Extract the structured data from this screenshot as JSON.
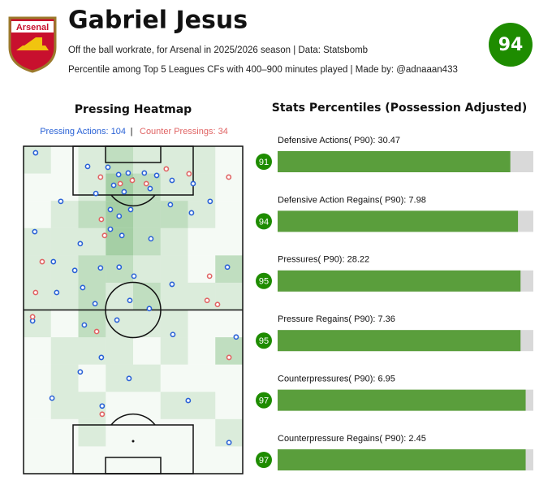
{
  "header": {
    "crest_text": "Arsenal",
    "title": "Gabriel Jesus",
    "subtitle1": "Off the ball workrate, for Arsenal in 2025/2026 season | Data: Statsbomb",
    "subtitle2": "Percentile among Top 5 Leagues CFs with 400–900 minutes played | Made by: @adnaaan433",
    "score": 94
  },
  "heatmap": {
    "title": "Pressing Heatmap",
    "legend": [
      {
        "label": "Pressing Actions: 104",
        "color": "#2a62d6"
      },
      {
        "label": "Counter Pressings: 34",
        "color": "#e06464"
      }
    ],
    "separator": "|",
    "pitch": {
      "width": 80,
      "length": 120
    },
    "cells": [
      [
        1,
        0,
        1,
        2,
        1,
        1,
        1,
        0
      ],
      [
        0,
        0,
        1,
        3,
        2,
        1,
        1,
        0
      ],
      [
        0,
        1,
        2,
        3,
        2,
        2,
        1,
        0
      ],
      [
        1,
        1,
        1,
        3,
        2,
        1,
        0,
        0
      ],
      [
        1,
        1,
        2,
        2,
        1,
        1,
        0,
        2
      ],
      [
        1,
        1,
        2,
        1,
        2,
        1,
        1,
        1
      ],
      [
        1,
        0,
        2,
        1,
        1,
        1,
        0,
        0
      ],
      [
        0,
        1,
        1,
        1,
        0,
        1,
        0,
        2
      ],
      [
        0,
        1,
        0,
        1,
        1,
        0,
        0,
        0
      ],
      [
        0,
        1,
        1,
        0,
        0,
        1,
        1,
        0
      ],
      [
        0,
        0,
        1,
        0,
        0,
        0,
        0,
        1
      ],
      [
        0,
        0,
        0,
        0,
        0,
        0,
        0,
        0
      ]
    ],
    "pressing": {
      "x": [
        4.4,
        23.4,
        30.8,
        34.7,
        38.2,
        44.1,
        48.6,
        54.2,
        61.9,
        26.4,
        32.9,
        36.7,
        46.2,
        13.6,
        31.7,
        34.9,
        39.1,
        53.6,
        61.3,
        68.1,
        4.1,
        20.7,
        31.7,
        35.9,
        46.5,
        10.9,
        18.7,
        28.1,
        34.9,
        40.3,
        74.4,
        12.1,
        21.6,
        26.1,
        38.8,
        45.9,
        54.2,
        3.3,
        22.2,
        34.1,
        54.5,
        77.6,
        28.4,
        20.7,
        38.5,
        10.4,
        28.7,
        60.1,
        75.0
      ],
      "y": [
        2.4,
        7.4,
        7.7,
        10.4,
        9.8,
        9.8,
        10.7,
        12.5,
        13.7,
        17.3,
        14.3,
        16.7,
        15.5,
        20.2,
        23.2,
        25.6,
        23.2,
        21.4,
        24.4,
        20.2,
        31.3,
        35.7,
        30.4,
        32.7,
        33.9,
        42.3,
        45.5,
        44.6,
        44.3,
        47.6,
        44.3,
        53.6,
        51.8,
        57.7,
        56.5,
        59.5,
        50.6,
        64.0,
        65.5,
        63.7,
        69.0,
        69.9,
        77.4,
        82.7,
        85.1,
        92.3,
        95.2,
        93.2,
        108.6
      ]
    },
    "counter": {
      "x": [
        52.1,
        60.4,
        74.9,
        28.1,
        35.3,
        39.7,
        44.8,
        28.4,
        29.6,
        6.8,
        67.9,
        4.4,
        70.8,
        67.0,
        3.3,
        26.7,
        75.0,
        28.7
      ],
      "y": [
        8.3,
        10.1,
        11.3,
        11.3,
        13.7,
        12.5,
        13.7,
        26.8,
        32.7,
        42.3,
        47.6,
        53.6,
        58.0,
        56.5,
        62.5,
        67.9,
        77.4,
        98.2
      ]
    }
  },
  "stats": {
    "title": "Stats Percentiles (Possession Adjusted)",
    "max": 100,
    "color": "#5a9e3c",
    "bars": [
      {
        "label": "Defensive Actions( P90): 30.47",
        "percentile": 91
      },
      {
        "label": "Defensive Action Regains( P90): 7.98",
        "percentile": 94
      },
      {
        "label": "Pressures( P90): 28.22",
        "percentile": 95
      },
      {
        "label": "Pressure Regains( P90): 7.36",
        "percentile": 95
      },
      {
        "label": "Counterpressures( P90): 6.95",
        "percentile": 97
      },
      {
        "label": "Counterpressure Regains( P90): 2.45",
        "percentile": 97
      }
    ]
  }
}
